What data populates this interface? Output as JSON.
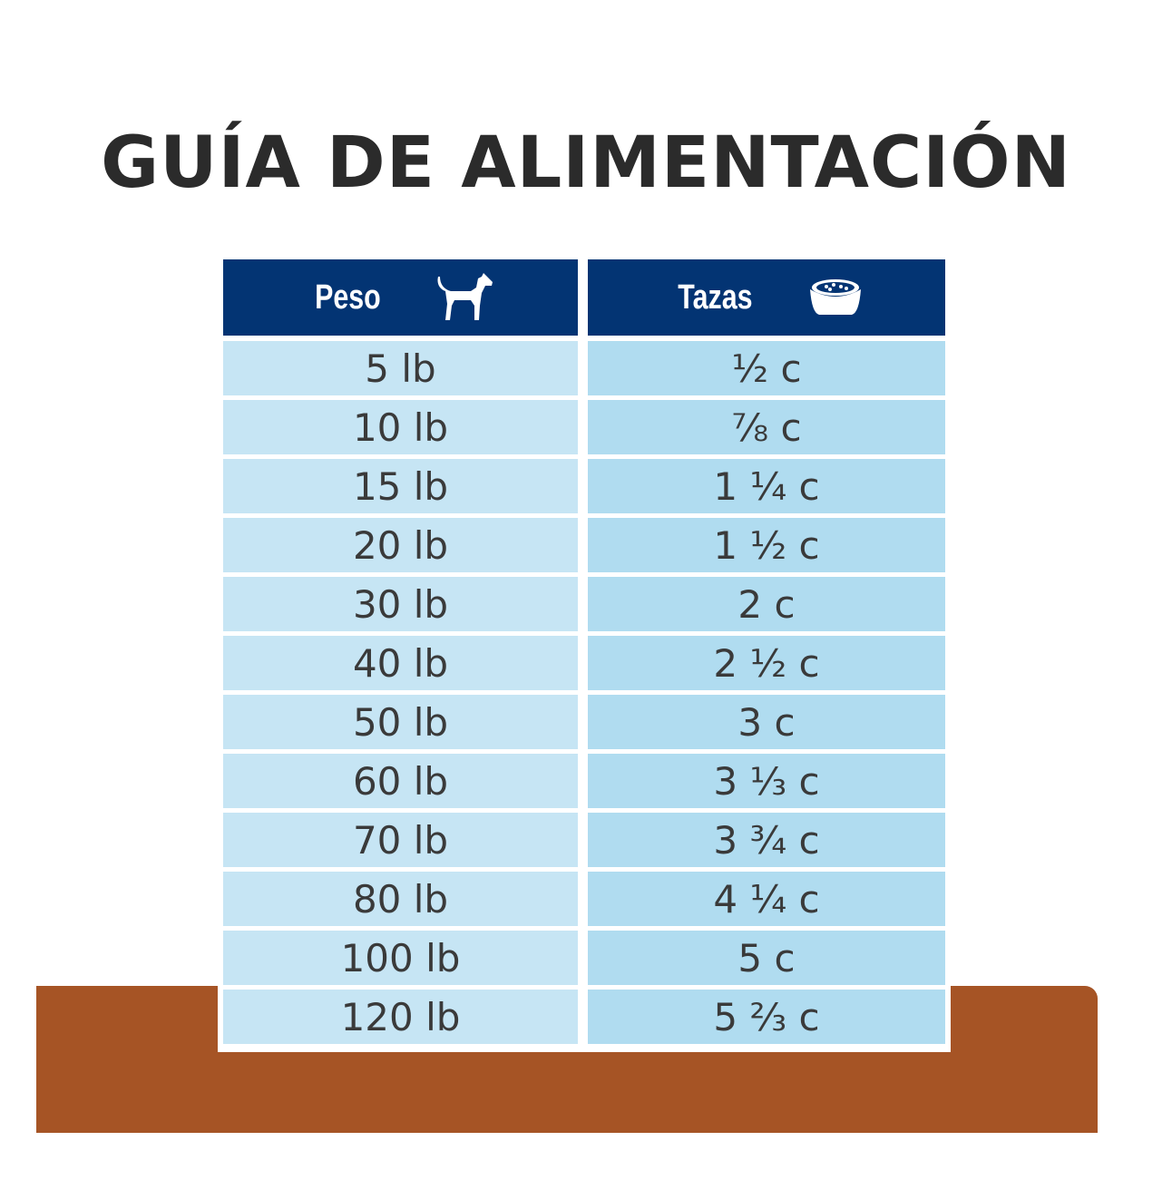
{
  "title": "GUÍA DE ALIMENTACIÓN",
  "header": {
    "weight_label": "Peso",
    "weight_icon": "dog-icon",
    "cups_label": "Tazas",
    "cups_icon": "food-bowl-icon"
  },
  "colors": {
    "header": "#033473",
    "weight_cell": "#c6e5f4",
    "cups_cell": "#b0dcf0",
    "shelf": "#a65425"
  },
  "rows": [
    {
      "weight": "5 lb",
      "cups": "½ c"
    },
    {
      "weight": "10 lb",
      "cups": "⅞ c"
    },
    {
      "weight": "15 lb",
      "cups": "1 ¼ c"
    },
    {
      "weight": "20 lb",
      "cups": "1 ½ c"
    },
    {
      "weight": "30 lb",
      "cups": "2 c"
    },
    {
      "weight": "40 lb",
      "cups": "2 ½ c"
    },
    {
      "weight": "50 lb",
      "cups": "3 c"
    },
    {
      "weight": "60 lb",
      "cups": "3 ⅓ c"
    },
    {
      "weight": "70 lb",
      "cups": "3 ¾ c"
    },
    {
      "weight": "80 lb",
      "cups": "4 ¼ c"
    },
    {
      "weight": "100 lb",
      "cups": "5 c"
    },
    {
      "weight": "120 lb",
      "cups": "5 ⅔ c"
    }
  ]
}
